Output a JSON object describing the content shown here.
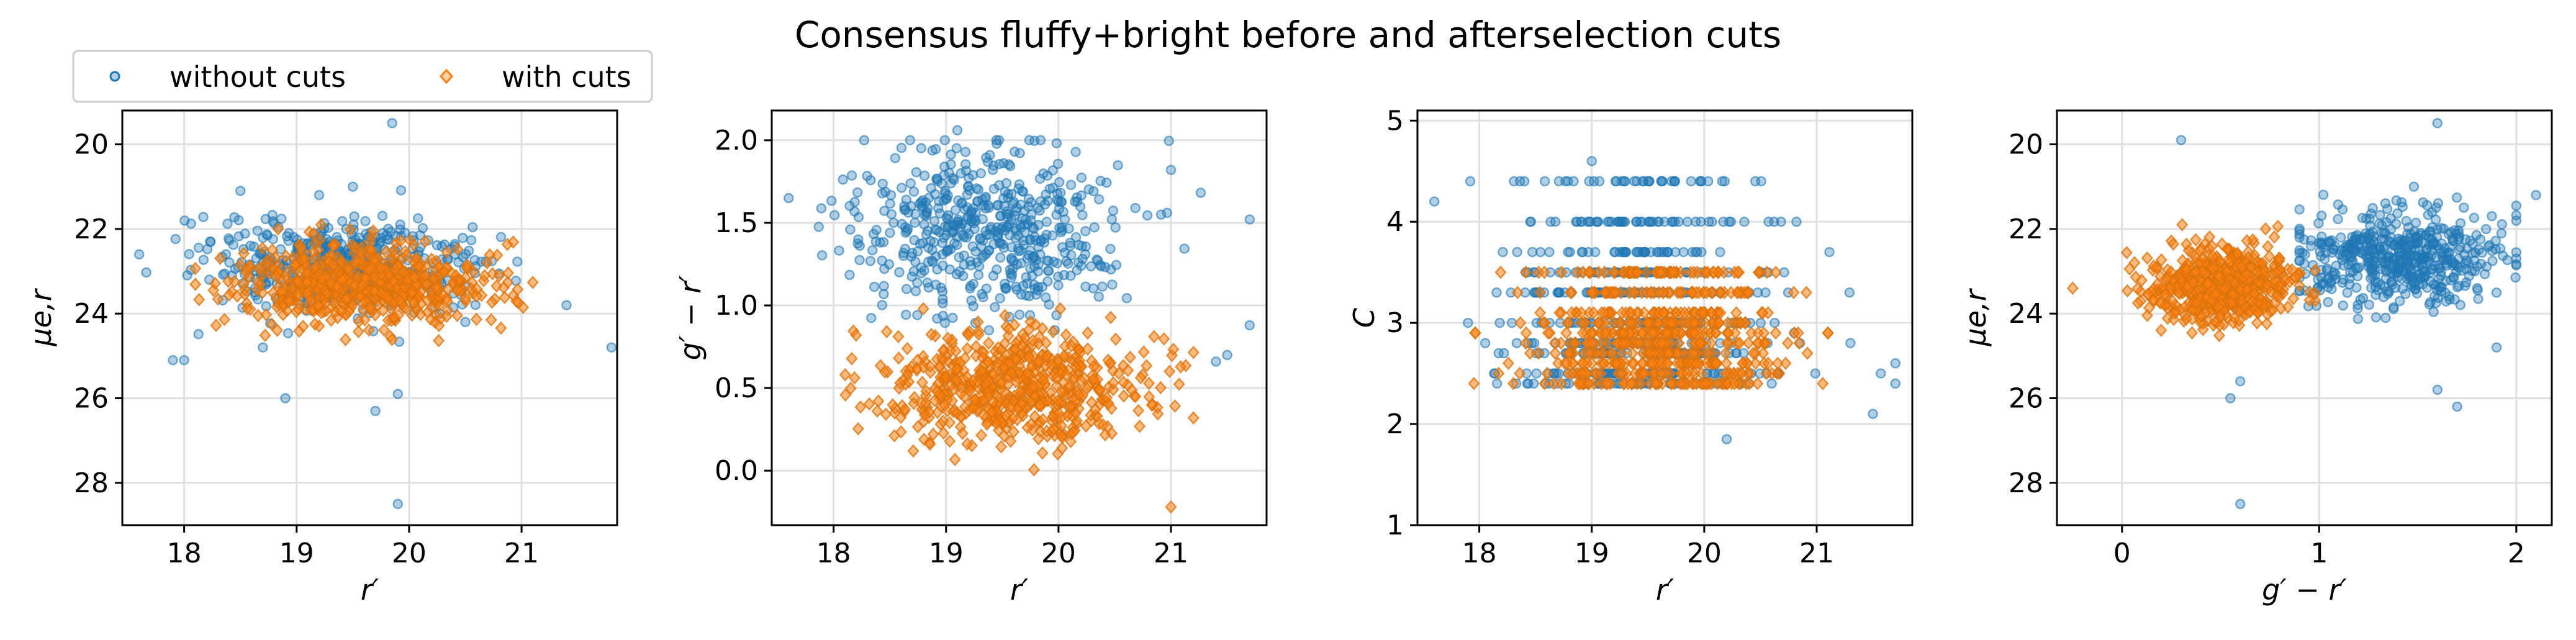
{
  "figure": {
    "title": "Consensus fluffy+bright before and afterselection cuts"
  },
  "legend": {
    "location": "top-left (above first panel)",
    "columns": 2,
    "entries": [
      {
        "label": "without cuts",
        "marker": "circle",
        "color": "#1f77b4"
      },
      {
        "label": "with cuts",
        "marker": "diamond",
        "color": "#ff7f0e"
      }
    ]
  },
  "colors": {
    "without_cuts": "#1f77b4",
    "with_cuts": "#ff7f0e",
    "grid": "#e0e0e0"
  },
  "chart_data": [
    {
      "type": "scatter",
      "title": "",
      "xlabel": "r′",
      "ylabel": "μe,r",
      "xlim": [
        17.45,
        21.85
      ],
      "ylim": [
        29.0,
        19.2
      ],
      "y_inverted": true,
      "xticks": [
        18,
        19,
        20,
        21
      ],
      "yticks": [
        20,
        22,
        24,
        26,
        28
      ],
      "grid": true,
      "series": [
        {
          "name": "without cuts",
          "n": 520,
          "x_mean": 19.4,
          "x_sd": 0.55,
          "x_min": 17.6,
          "x_max": 21.8,
          "y_mean": 22.9,
          "y_sd": 0.55,
          "y_min": 21.0,
          "y_max": 26.3,
          "outliers": [
            [
              19.85,
              19.5
            ],
            [
              19.9,
              28.5
            ],
            [
              17.9,
              25.1
            ],
            [
              18.0,
              25.1
            ],
            [
              18.7,
              24.8
            ],
            [
              18.9,
              26.0
            ],
            [
              19.9,
              25.9
            ],
            [
              19.7,
              26.3
            ],
            [
              21.8,
              24.8
            ],
            [
              18.5,
              21.1
            ],
            [
              19.5,
              21.0
            ],
            [
              19.2,
              21.2
            ],
            [
              17.6,
              22.6
            ],
            [
              21.4,
              23.8
            ],
            [
              20.5,
              24.2
            ]
          ]
        },
        {
          "name": "with cuts",
          "n": 620,
          "x_mean": 19.6,
          "x_sd": 0.55,
          "x_min": 18.1,
          "x_max": 21.1,
          "y_mean": 23.3,
          "y_sd": 0.45,
          "y_min": 21.9,
          "y_max": 24.9
        }
      ]
    },
    {
      "type": "scatter",
      "title": "",
      "xlabel": "r′",
      "ylabel": "g′ − r′",
      "xlim": [
        17.45,
        21.85
      ],
      "ylim": [
        -0.33,
        2.18
      ],
      "xticks": [
        18,
        19,
        20,
        21
      ],
      "yticks": [
        0.0,
        0.5,
        1.0,
        1.5,
        2.0
      ],
      "grid": true,
      "series": [
        {
          "name": "without cuts",
          "n": 520,
          "x_mean": 19.4,
          "x_sd": 0.6,
          "x_min": 17.6,
          "x_max": 21.8,
          "y_mean": 1.45,
          "y_sd": 0.25,
          "y_min": 0.85,
          "y_max": 2.0,
          "outliers": [
            [
              19.1,
              2.06
            ],
            [
              21.7,
              1.52
            ],
            [
              21.0,
              1.82
            ],
            [
              21.4,
              0.66
            ],
            [
              21.5,
              0.7
            ],
            [
              21.7,
              0.88
            ],
            [
              17.6,
              1.65
            ]
          ]
        },
        {
          "name": "with cuts",
          "n": 620,
          "x_mean": 19.6,
          "x_sd": 0.6,
          "x_min": 18.0,
          "x_max": 21.2,
          "y_mean": 0.5,
          "y_sd": 0.17,
          "y_min": 0.0,
          "y_max": 0.98,
          "outliers": [
            [
              21.0,
              -0.22
            ],
            [
              18.2,
              0.82
            ]
          ]
        }
      ]
    },
    {
      "type": "scatter",
      "title": "",
      "xlabel": "r′",
      "ylabel": "C",
      "xlim": [
        17.45,
        21.85
      ],
      "ylim": [
        1.0,
        5.1
      ],
      "xticks": [
        18,
        19,
        20,
        21
      ],
      "yticks": [
        1,
        2,
        3,
        4,
        5
      ],
      "grid": true,
      "series": [
        {
          "name": "without cuts",
          "n": 520,
          "x_mean": 19.4,
          "x_sd": 0.6,
          "x_min": 17.6,
          "x_max": 21.8,
          "y_mean": 3.2,
          "y_sd": 0.45,
          "y_levels": [
            2.4,
            2.5,
            2.7,
            2.8,
            3.0,
            3.3,
            3.5,
            3.7,
            4.0,
            4.4
          ],
          "y_min": 2.2,
          "y_max": 4.6,
          "outliers": [
            [
              19.0,
              4.6
            ],
            [
              17.6,
              4.2
            ],
            [
              20.8,
              2.9
            ],
            [
              21.7,
              2.6
            ],
            [
              21.7,
              2.4
            ],
            [
              21.5,
              2.1
            ],
            [
              21.3,
              2.8
            ],
            [
              20.2,
              1.85
            ]
          ]
        },
        {
          "name": "with cuts",
          "n": 620,
          "x_mean": 19.6,
          "x_sd": 0.55,
          "x_min": 17.9,
          "x_max": 21.1,
          "y_mean": 2.75,
          "y_sd": 0.25,
          "y_levels": [
            2.4,
            2.5,
            2.6,
            2.7,
            2.8,
            2.9,
            3.0,
            3.1,
            3.3,
            3.5
          ],
          "y_min": 1.95,
          "y_max": 3.5
        }
      ]
    },
    {
      "type": "scatter",
      "title": "",
      "xlabel": "g′ − r′",
      "ylabel": "μe,r",
      "xlim": [
        -0.33,
        2.18
      ],
      "ylim": [
        29.0,
        19.2
      ],
      "y_inverted": true,
      "xticks": [
        0,
        1,
        2
      ],
      "yticks": [
        20,
        22,
        24,
        26,
        28
      ],
      "grid": true,
      "series": [
        {
          "name": "without cuts",
          "n": 520,
          "x_mean": 1.4,
          "x_sd": 0.27,
          "x_min": 0.9,
          "x_max": 2.0,
          "y_mean": 22.7,
          "y_sd": 0.55,
          "y_min": 21.0,
          "y_max": 26.0,
          "outliers": [
            [
              0.6,
              28.5
            ],
            [
              0.3,
              19.9
            ],
            [
              1.6,
              19.5
            ],
            [
              2.1,
              21.2
            ],
            [
              1.7,
              26.2
            ],
            [
              1.6,
              25.8
            ],
            [
              1.9,
              24.8
            ],
            [
              0.55,
              26.0
            ],
            [
              0.6,
              25.6
            ]
          ]
        },
        {
          "name": "with cuts",
          "n": 620,
          "x_mean": 0.5,
          "x_sd": 0.17,
          "x_min": 0.0,
          "x_max": 0.98,
          "y_mean": 23.3,
          "y_sd": 0.45,
          "y_min": 21.9,
          "y_max": 24.9,
          "outliers": [
            [
              -0.25,
              23.4
            ]
          ]
        }
      ]
    }
  ]
}
